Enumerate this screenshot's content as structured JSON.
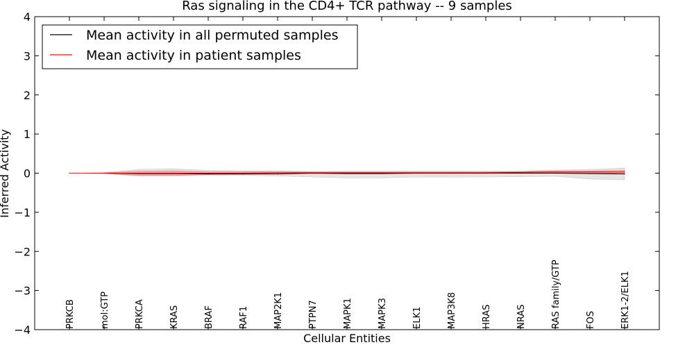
{
  "chart_data": {
    "type": "line",
    "title": "Ras signaling in the CD4+ TCR pathway -- 9 samples",
    "xlabel": "Cellular Entities",
    "ylabel": "Inferred Activity",
    "ylim": [
      -4,
      4
    ],
    "yticks": [
      -4,
      -3,
      -2,
      -1,
      0,
      1,
      2,
      3,
      4
    ],
    "ytick_labels": [
      "−4",
      "−3",
      "−2",
      "−1",
      "0",
      "1",
      "2",
      "3",
      "4"
    ],
    "legend_position": "top-left",
    "categories": [
      "PRKCB",
      "mol:GTP",
      "PRKCA",
      "KRAS",
      "BRAF",
      "RAF1",
      "MAP2K1",
      "PTPN7",
      "MAPK1",
      "MAPK3",
      "ELK1",
      "MAP3K8",
      "HRAS",
      "NRAS",
      "RAS family/GTP",
      "FOS",
      "ERK1-2/ELK1"
    ],
    "series": [
      {
        "name": "Mean activity in all permuted samples",
        "color": "#000000",
        "values": [
          0.0,
          0.0,
          -0.01,
          -0.01,
          -0.02,
          -0.02,
          -0.02,
          0.0,
          -0.01,
          -0.01,
          0.0,
          0.0,
          0.0,
          0.0,
          0.0,
          -0.01,
          -0.02
        ],
        "band_lower": [
          0.0,
          -0.01,
          -0.08,
          -0.07,
          -0.06,
          -0.06,
          -0.07,
          -0.1,
          -0.12,
          -0.12,
          -0.1,
          -0.1,
          -0.1,
          -0.09,
          -0.08,
          -0.15,
          -0.17
        ],
        "band_upper": [
          0.0,
          0.01,
          0.1,
          0.11,
          0.07,
          0.06,
          0.06,
          0.04,
          0.05,
          0.05,
          0.05,
          0.05,
          0.05,
          0.05,
          0.08,
          0.1,
          0.13
        ],
        "band_color": "#888888"
      },
      {
        "name": "Mean activity in patient samples",
        "color": "#ff0000",
        "values": [
          0.0,
          0.0,
          0.0,
          0.0,
          0.0,
          0.0,
          0.01,
          0.01,
          0.01,
          0.01,
          0.01,
          0.01,
          0.01,
          0.02,
          0.03,
          0.03,
          0.03
        ],
        "band_lower": [
          0.0,
          -0.01,
          -0.06,
          -0.06,
          -0.04,
          -0.03,
          -0.02,
          -0.01,
          -0.01,
          -0.01,
          -0.01,
          -0.01,
          -0.01,
          0.0,
          0.0,
          -0.01,
          -0.01
        ],
        "band_upper": [
          0.0,
          0.01,
          0.05,
          0.06,
          0.04,
          0.04,
          0.04,
          0.03,
          0.03,
          0.03,
          0.03,
          0.03,
          0.03,
          0.04,
          0.06,
          0.06,
          0.07
        ],
        "band_color": "#ff0000"
      }
    ]
  }
}
